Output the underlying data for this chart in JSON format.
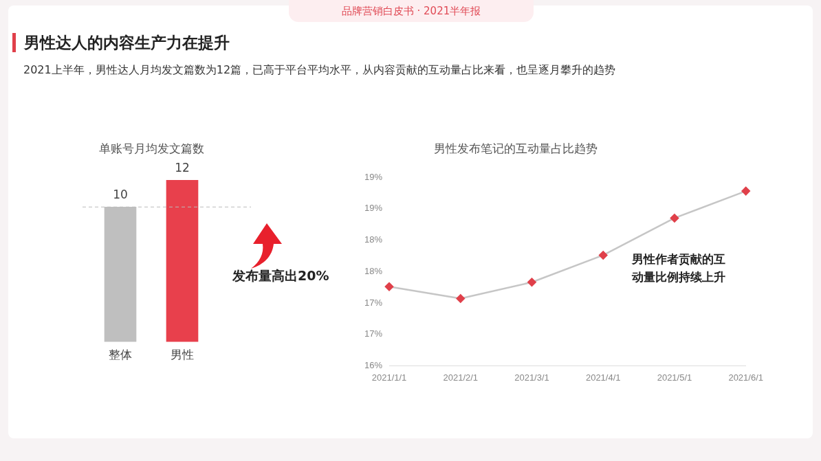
{
  "chart_data": [
    {
      "type": "other",
      "title": "男性达人的内容生产力在提升",
      "subtitle": "2021上半年，男性达人月均发文篇数为12篇，已高于平台平均水平，从内容贡献的互动量占比来看，也呈逐月攀升的趋势",
      "annotations": [
        "品牌营销白皮书 · 2021半年报"
      ]
    },
    {
      "type": "bar",
      "title": "单账号月均发文篇数",
      "categories": [
        "整体",
        "男性"
      ],
      "values": [
        10,
        12
      ],
      "colors": [
        "#bfbfbf",
        "#e8404c"
      ],
      "data_labels": true,
      "grid": false,
      "legend": false,
      "tick_labels": "x",
      "ref_lines": [
        {
          "axis": "y",
          "value": 10,
          "line_style": "dashed",
          "color": "#bbbbbb"
        }
      ],
      "annotations": [
        "发布量高出20%"
      ]
    },
    {
      "type": "line",
      "title": "男性发布笔记的互动量占比趋势",
      "categories": [
        "2021/1/1",
        "2021/2/1",
        "2021/3/1",
        "2021/4/1",
        "2021/5/1",
        "2021/6/1"
      ],
      "series": [
        {
          "color": "#c6c6c6",
          "colors": [
            "#e0404a",
            "#e0404a",
            "#e0404a",
            "#e0404a",
            "#e0404a",
            "#e0404a"
          ],
          "values": [
            17.26,
            17.07,
            17.33,
            17.76,
            18.35,
            18.78
          ]
        }
      ],
      "ylim": [
        16,
        19
      ],
      "yticks": [
        {
          "value": 16,
          "label": "16%"
        },
        {
          "value": 16.5,
          "label": "17%"
        },
        {
          "value": 17,
          "label": "17%"
        },
        {
          "value": 17.5,
          "label": "18%"
        },
        {
          "value": 18,
          "label": "18%"
        },
        {
          "value": 18.5,
          "label": "19%"
        },
        {
          "value": 19,
          "label": "19%"
        }
      ],
      "grid": false,
      "legend": false,
      "marker": "diamond",
      "line_style": "solid",
      "annotations": [
        "男性作者贡献的互动量比例持续上升"
      ]
    }
  ]
}
